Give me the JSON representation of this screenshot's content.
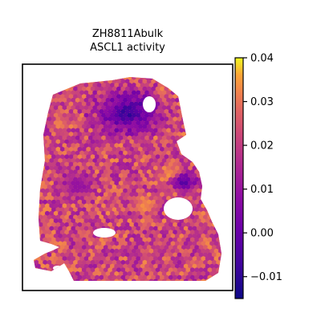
{
  "chart_data": {
    "type": "heatmap",
    "title_lines": [
      "ZH8811Abulk",
      "ASCL1 activity"
    ],
    "colormap": "plasma",
    "colorbar": {
      "range": [
        -0.015,
        0.04
      ],
      "ticks": [
        -0.01,
        0.0,
        0.01,
        0.02,
        0.03,
        0.04
      ],
      "tick_labels": [
        "−0.01",
        "0.00",
        "0.01",
        "0.02",
        "0.03",
        "0.04"
      ],
      "placement": "right"
    },
    "spot_summary": {
      "typical_value": 0.022,
      "low_activity_region": "upper-center",
      "low_activity_value": -0.01,
      "high_activity_value": 0.035
    },
    "axes_visible": false
  }
}
